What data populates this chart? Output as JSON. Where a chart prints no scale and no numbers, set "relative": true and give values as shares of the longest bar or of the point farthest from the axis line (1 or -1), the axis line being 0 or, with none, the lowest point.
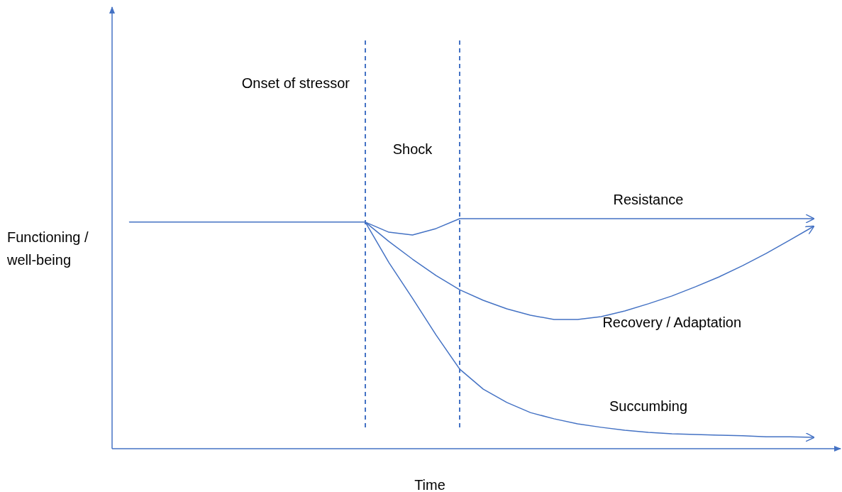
{
  "chart_data": {
    "type": "line",
    "relative": true,
    "xlabel": "Time",
    "ylabel": "Functioning / well-being",
    "categories": [
      null,
      null,
      null,
      null,
      null,
      null,
      null,
      null,
      null,
      null,
      null,
      null,
      null,
      null,
      null,
      null,
      null,
      null,
      null,
      null,
      null,
      null,
      null,
      null,
      null,
      null,
      null,
      null,
      null,
      null
    ],
    "series": [
      {
        "name": "Resistance",
        "color": "#4472c4",
        "values": [
          0.985,
          0.985,
          0.985,
          0.985,
          0.985,
          0.985,
          0.985,
          0.985,
          0.985,
          0.985,
          0.985,
          0.941,
          0.929,
          0.957,
          1,
          1,
          1,
          1,
          1,
          1,
          1,
          1,
          1,
          1,
          1,
          1,
          1,
          1,
          1,
          1
        ]
      },
      {
        "name": "Recovery / Adaptation",
        "color": "#4472c4",
        "values": [
          null,
          null,
          null,
          null,
          null,
          null,
          null,
          null,
          null,
          null,
          0.985,
          0.901,
          0.824,
          0.753,
          0.691,
          0.645,
          0.608,
          0.58,
          0.562,
          0.562,
          0.574,
          0.599,
          0.63,
          0.664,
          0.704,
          0.747,
          0.796,
          0.849,
          0.907,
          0.966
        ]
      },
      {
        "name": "Succumbing",
        "color": "#4472c4",
        "values": [
          null,
          null,
          null,
          null,
          null,
          null,
          null,
          null,
          null,
          null,
          0.985,
          0.809,
          0.654,
          0.494,
          0.346,
          0.259,
          0.201,
          0.157,
          0.13,
          0.108,
          0.093,
          0.08,
          0.071,
          0.065,
          0.062,
          0.059,
          0.056,
          0.052,
          0.052,
          0.049
        ]
      }
    ],
    "annotations": [
      "Onset of stressor",
      "Shock"
    ],
    "grid": false,
    "marker": "none",
    "line_style": "solid"
  }
}
